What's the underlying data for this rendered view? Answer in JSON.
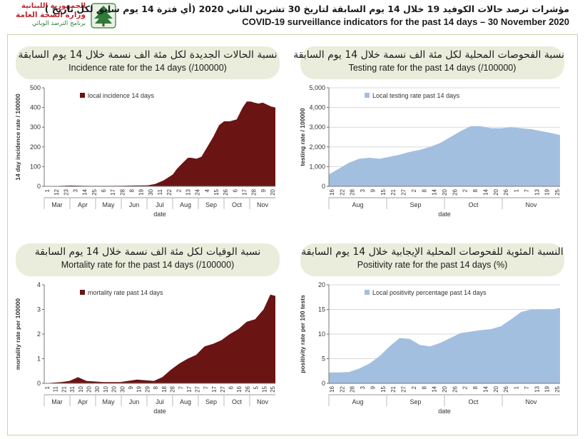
{
  "header": {
    "logo_line1": "الجمهورية اللبنانية",
    "logo_line2": "وزارة الصحة العامة",
    "logo_line3": "برنامج الترصد الوبائي",
    "title_ar": "مؤشرات ترصد حالات الكوفيد 19 خلال  14 يوم السابقة لتاريخ 30 تشرين الثاني 2020 (أي فترة  14 يوم سابق لكل تاريخ )",
    "title_en": "COVID-19 surveillance indicators for the past 14 days – 30 November 2020"
  },
  "panels": [
    {
      "banner_ar": "نسبة الحالات الجديدة لكل مئة الف نسمة خلال 14 يوم السابقة",
      "banner_en": "Incidence rate for the 14 days  (/100000)"
    },
    {
      "banner_ar": "نسبة الفحوصات المحلية لكل مئة الف نسمة خلال 14 يوم السابقة",
      "banner_en": "Testing rate for the past 14 days (/100000)"
    },
    {
      "banner_ar": "نسبة الوفيات لكل مئة الف نسمة خلال 14 يوم السابقة",
      "banner_en": "Mortality rate for the past 14 days (/100000)"
    },
    {
      "banner_ar": "النسبة المئوية للفحوصات المحلية الإيجابية خلال 14 يوم السابقة",
      "banner_en": "Positivity rate for the past 14 days (%)"
    }
  ],
  "colors": {
    "maroon": "#6b1414",
    "blue": "#a3bfe0",
    "banner": "#ebeddc",
    "frame": "#c9d3a6"
  },
  "chart_data": [
    {
      "type": "area",
      "legend": "local incidence 14 days",
      "legend_position": "top-left",
      "xlabel": "date",
      "ylabel": "14 day incidence rate / 100000",
      "ylim": [
        0,
        500
      ],
      "yticks": [
        0,
        100,
        200,
        300,
        400,
        500
      ],
      "xlim": [
        "2020-02-29",
        "2020-11-30"
      ],
      "day_ticks": [
        "1",
        "12",
        "23",
        "3",
        "14",
        "25",
        "6",
        "17",
        "28",
        "8",
        "19",
        "30",
        "11",
        "22",
        "2",
        "13",
        "24",
        "4",
        "15",
        "26",
        "6",
        "17",
        "28",
        "9",
        "20"
      ],
      "months": [
        "Mar",
        "Apr",
        "May",
        "Jun",
        "Jul",
        "Aug",
        "Sep",
        "Oct",
        "Nov"
      ],
      "grid": false,
      "x": [
        "2020-02-29",
        "2020-03-20",
        "2020-03-31",
        "2020-04-15",
        "2020-05-01",
        "2020-05-15",
        "2020-06-01",
        "2020-06-15",
        "2020-07-01",
        "2020-07-10",
        "2020-07-20",
        "2020-07-31",
        "2020-08-05",
        "2020-08-12",
        "2020-08-18",
        "2020-08-22",
        "2020-08-28",
        "2020-09-03",
        "2020-09-10",
        "2020-09-17",
        "2020-09-24",
        "2020-09-30",
        "2020-10-07",
        "2020-10-15",
        "2020-10-22",
        "2020-10-27",
        "2020-11-01",
        "2020-11-05",
        "2020-11-10",
        "2020-11-15",
        "2020-11-20",
        "2020-11-25",
        "2020-11-30"
      ],
      "y": [
        0,
        2,
        4,
        3,
        2,
        2,
        3,
        4,
        5,
        12,
        30,
        60,
        90,
        120,
        145,
        145,
        140,
        150,
        200,
        250,
        310,
        330,
        330,
        340,
        400,
        430,
        430,
        425,
        420,
        425,
        415,
        405,
        400
      ]
    },
    {
      "type": "area",
      "legend": "Local testing rate past 14 days",
      "legend_position": "top-left",
      "xlabel": "date",
      "ylabel": "testing rate / 100000",
      "ylim": [
        0,
        5000
      ],
      "yticks": [
        0,
        1000,
        2000,
        3000,
        4000,
        5000
      ],
      "xlim": [
        "2020-07-16",
        "2020-11-30"
      ],
      "day_ticks": [
        "16",
        "22",
        "28",
        "3",
        "9",
        "15",
        "21",
        "27",
        "2",
        "8",
        "14",
        "20",
        "26",
        "2",
        "8",
        "14",
        "20",
        "26",
        "1",
        "7",
        "13",
        "19",
        "25"
      ],
      "months": [
        "Aug",
        "Sep",
        "Oct",
        "Nov"
      ],
      "grid": true,
      "x": [
        "2020-07-16",
        "2020-07-22",
        "2020-07-28",
        "2020-08-03",
        "2020-08-09",
        "2020-08-15",
        "2020-08-21",
        "2020-08-27",
        "2020-09-02",
        "2020-09-08",
        "2020-09-14",
        "2020-09-20",
        "2020-09-26",
        "2020-10-02",
        "2020-10-08",
        "2020-10-14",
        "2020-10-20",
        "2020-10-26",
        "2020-11-01",
        "2020-11-07",
        "2020-11-13",
        "2020-11-19",
        "2020-11-25",
        "2020-11-30"
      ],
      "y": [
        600,
        900,
        1200,
        1400,
        1450,
        1400,
        1500,
        1600,
        1750,
        1850,
        2000,
        2200,
        2500,
        2800,
        3050,
        3050,
        2950,
        2950,
        3000,
        2950,
        2900,
        2800,
        2700,
        2600
      ]
    },
    {
      "type": "area",
      "legend": "mortality rate past 14 days",
      "legend_position": "top-left",
      "xlabel": "date",
      "ylabel": "mortality rate per 100000",
      "ylim": [
        0,
        4
      ],
      "yticks": [
        0,
        1,
        2,
        3,
        4
      ],
      "xlim": [
        "2020-03-01",
        "2020-11-30"
      ],
      "day_ticks": [
        "1",
        "11",
        "21",
        "31",
        "10",
        "20",
        "30",
        "10",
        "20",
        "30",
        "9",
        "19",
        "29",
        "8",
        "18",
        "28",
        "7",
        "17",
        "27",
        "7",
        "17",
        "27",
        "6",
        "16",
        "26",
        "5",
        "15",
        "25"
      ],
      "months": [
        "Mar",
        "Apr",
        "May",
        "Jun",
        "Jul",
        "Aug",
        "Sep",
        "Oct",
        "Nov"
      ],
      "grid": false,
      "x": [
        "2020-03-01",
        "2020-03-21",
        "2020-03-31",
        "2020-04-10",
        "2020-04-20",
        "2020-05-10",
        "2020-05-30",
        "2020-06-19",
        "2020-07-09",
        "2020-07-19",
        "2020-07-29",
        "2020-08-08",
        "2020-08-18",
        "2020-08-28",
        "2020-09-07",
        "2020-09-17",
        "2020-09-27",
        "2020-10-07",
        "2020-10-17",
        "2020-10-27",
        "2020-11-06",
        "2020-11-16",
        "2020-11-24",
        "2020-11-30"
      ],
      "y": [
        0,
        0.05,
        0.1,
        0.25,
        0.1,
        0.05,
        0.05,
        0.15,
        0.1,
        0.25,
        0.55,
        0.8,
        1.0,
        1.15,
        1.5,
        1.6,
        1.75,
        2.0,
        2.2,
        2.5,
        2.6,
        3.0,
        3.6,
        3.55
      ]
    },
    {
      "type": "area",
      "legend": "Local positivity percentage past 14 days",
      "legend_position": "top-left",
      "xlabel": "date",
      "ylabel": "positivity rate per 100 tests",
      "ylim": [
        0,
        20
      ],
      "yticks": [
        0,
        5,
        10,
        15,
        20
      ],
      "xlim": [
        "2020-07-16",
        "2020-11-30"
      ],
      "day_ticks": [
        "16",
        "22",
        "28",
        "3",
        "9",
        "15",
        "21",
        "27",
        "2",
        "8",
        "14",
        "20",
        "26",
        "2",
        "8",
        "14",
        "20",
        "26",
        "1",
        "7",
        "13",
        "19",
        "25"
      ],
      "months": [
        "Aug",
        "Sep",
        "Oct",
        "Nov"
      ],
      "grid": true,
      "x": [
        "2020-07-16",
        "2020-07-22",
        "2020-07-28",
        "2020-08-03",
        "2020-08-09",
        "2020-08-15",
        "2020-08-21",
        "2020-08-27",
        "2020-09-02",
        "2020-09-08",
        "2020-09-14",
        "2020-09-20",
        "2020-09-26",
        "2020-10-02",
        "2020-10-08",
        "2020-10-14",
        "2020-10-20",
        "2020-10-26",
        "2020-11-01",
        "2020-11-07",
        "2020-11-13",
        "2020-11-19",
        "2020-11-25",
        "2020-11-30"
      ],
      "y": [
        2.2,
        2.2,
        2.3,
        3.0,
        4.0,
        5.5,
        7.5,
        9.2,
        9.0,
        7.8,
        7.5,
        8.2,
        9.2,
        10.2,
        10.5,
        10.8,
        11.0,
        11.6,
        13.0,
        14.5,
        15.0,
        15.0,
        15.0,
        15.3
      ]
    }
  ]
}
